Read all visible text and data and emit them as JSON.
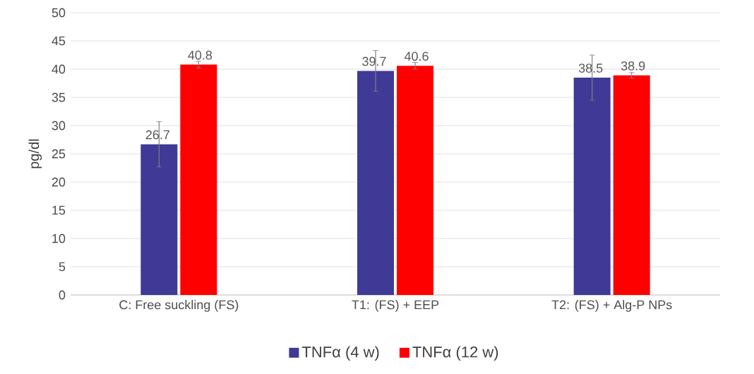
{
  "chart_data": {
    "type": "bar",
    "ylabel": "pg/dl",
    "categories": [
      "C: Free suckling (FS)",
      "T1: (FS) + EEP",
      "T2: (FS) + Alg-P NPs"
    ],
    "series": [
      {
        "name": "TNFα (4 w)",
        "color": "#3f3a96",
        "values": [
          26.7,
          39.7,
          38.5
        ],
        "errors": [
          4,
          3.6,
          4
        ]
      },
      {
        "name": "TNFα (12 w)",
        "color": "#ff0000",
        "values": [
          40.8,
          40.6,
          38.9
        ],
        "errors": [
          0.6,
          0.6,
          0.5
        ]
      }
    ],
    "ylim": [
      0,
      50
    ],
    "yticks": [
      0,
      5,
      10,
      15,
      20,
      25,
      30,
      35,
      40,
      45,
      50
    ],
    "grid": "y",
    "legend": "bottom",
    "data_labels": true
  }
}
